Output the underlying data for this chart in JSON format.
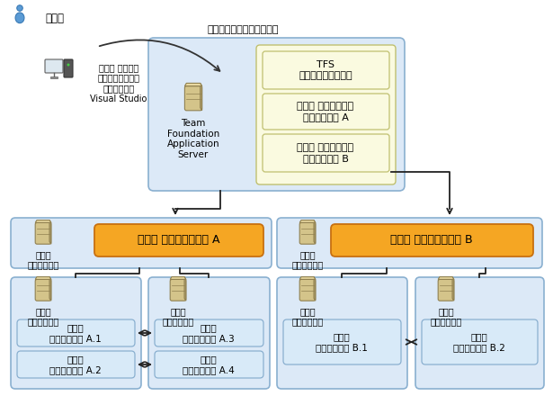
{
  "bg_color": "#ffffff",
  "lb_color": "#dce9f7",
  "lb_border": "#8ab0d0",
  "ly_color": "#fafae0",
  "ly_border": "#c0c070",
  "agent_color": "#d8eaf8",
  "agent_border": "#8ab0d0",
  "orange_color": "#f5a623",
  "orange_border": "#c87010",
  "icon_body": "#d8c890",
  "icon_border": "#a09060",
  "developer_label": "開発者",
  "queue_label": "ビルドをキューに配置する",
  "vs_label": "チーム エクスプ\nローラーがインス\nトールされた\nVisual Studio",
  "tfs_server_label": "Team\nFoundation\nApplication\nServer",
  "tfs_app_label": "TFS\nアプリケーション層",
  "team_proj_a_label": "チーム プロジェクト\nコレクション A",
  "team_proj_b_label": "チーム プロジェクト\nコレクション B",
  "build_computer_label": "ビルド\nコンピュータ",
  "controller_a_label": "ビルド コントローラー A",
  "controller_b_label": "ビルド コントローラー B",
  "agent_a1": "ビルド\nエージェント A.1",
  "agent_a2": "ビルド\nエージェント A.2",
  "agent_a3": "ビルド\nエージェント A.3",
  "agent_a4": "ビルド\nエージェント A.4",
  "agent_b1": "ビルド\nエージェント B.1",
  "agent_b2": "ビルド\nエージェント B.2"
}
